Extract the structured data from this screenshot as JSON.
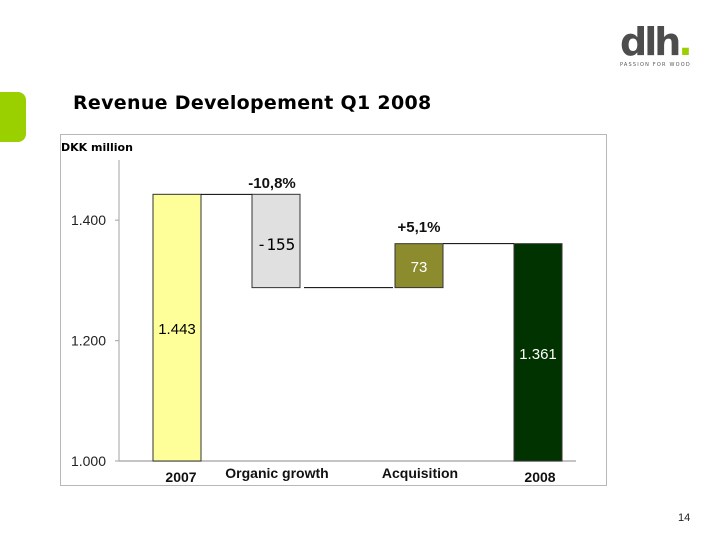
{
  "slide": {
    "title": "Revenue Developement Q1 2008",
    "unit": "DKK million",
    "page_number": "14"
  },
  "logo": {
    "text": "dlh",
    "dot": ".",
    "tagline": "PASSION FOR WOOD",
    "color": "#4d4d4d",
    "accent": "#9ad000"
  },
  "colors": {
    "bar_2007": "#ffff99",
    "bar_organic": "#e0e0e0",
    "bar_acquisition": "#8c8c2e",
    "bar_2008": "#003300",
    "axis": "#b0b0b0"
  },
  "chart_data": {
    "type": "waterfall",
    "ylim": [
      1000,
      1500
    ],
    "yticks": [
      1000,
      1200,
      1400
    ],
    "ytick_labels": [
      "1.000",
      "1.200",
      "1.400"
    ],
    "categories": [
      "2007",
      "Organic growth",
      "Acquisition",
      "2008"
    ],
    "bars": [
      {
        "category": "2007",
        "kind": "total",
        "start": 1000,
        "end": 1443,
        "label": "1.443",
        "pct_label": ""
      },
      {
        "category": "Organic growth",
        "kind": "delta",
        "start": 1443,
        "end": 1288,
        "label": "-155",
        "pct_label": "-10,8%"
      },
      {
        "category": "Acquisition",
        "kind": "delta",
        "start": 1288,
        "end": 1361,
        "label": "73",
        "pct_label": "+5,1%"
      },
      {
        "category": "2008",
        "kind": "total",
        "start": 1000,
        "end": 1361,
        "label": "1.361",
        "pct_label": ""
      }
    ]
  }
}
